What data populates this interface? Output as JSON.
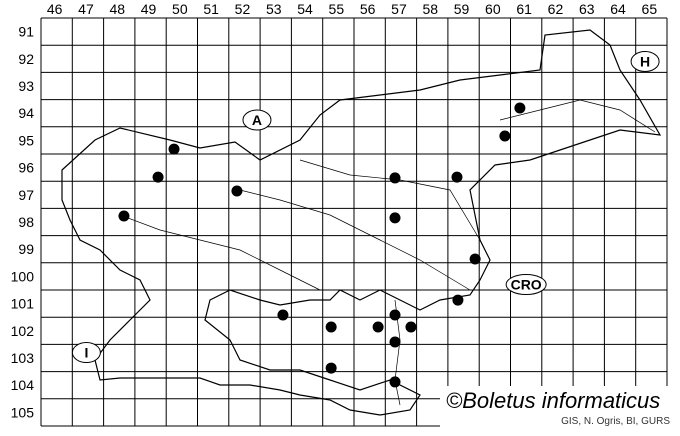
{
  "map": {
    "columns": [
      "46",
      "47",
      "48",
      "49",
      "50",
      "51",
      "52",
      "53",
      "54",
      "55",
      "56",
      "57",
      "58",
      "59",
      "60",
      "61",
      "62",
      "63",
      "64",
      "65"
    ],
    "rows": [
      "91",
      "92",
      "93",
      "94",
      "95",
      "96",
      "97",
      "98",
      "99",
      "100",
      "101",
      "102",
      "103",
      "104",
      "105"
    ],
    "country_labels": [
      {
        "text": "A",
        "col": 52.9,
        "row": 94.75
      },
      {
        "text": "H",
        "col": 65.3,
        "row": 92.6
      },
      {
        "text": "CRO",
        "col": 61.5,
        "row": 100.8
      },
      {
        "text": "I",
        "col": 47.45,
        "row": 103.3
      }
    ],
    "records": [
      {
        "col": 61.3,
        "row": 94.31
      },
      {
        "col": 60.82,
        "row": 95.34
      },
      {
        "col": 50.25,
        "row": 95.82
      },
      {
        "col": 49.74,
        "row": 96.85
      },
      {
        "col": 57.31,
        "row": 96.88
      },
      {
        "col": 59.29,
        "row": 96.85
      },
      {
        "col": 52.26,
        "row": 97.36
      },
      {
        "col": 48.65,
        "row": 98.28
      },
      {
        "col": 57.31,
        "row": 98.35
      },
      {
        "col": 59.87,
        "row": 99.86
      },
      {
        "col": 59.32,
        "row": 101.37
      },
      {
        "col": 53.73,
        "row": 101.92
      },
      {
        "col": 55.27,
        "row": 102.36
      },
      {
        "col": 56.77,
        "row": 102.36
      },
      {
        "col": 57.31,
        "row": 101.92
      },
      {
        "col": 57.82,
        "row": 102.36
      },
      {
        "col": 57.31,
        "row": 102.91
      },
      {
        "col": 55.27,
        "row": 103.87
      },
      {
        "col": 57.31,
        "row": 104.38
      }
    ],
    "dot_color": "#000000"
  },
  "credit": {
    "title": "©Boletus informaticus",
    "source": "GIS, N. Ogris, BI, GURS"
  }
}
